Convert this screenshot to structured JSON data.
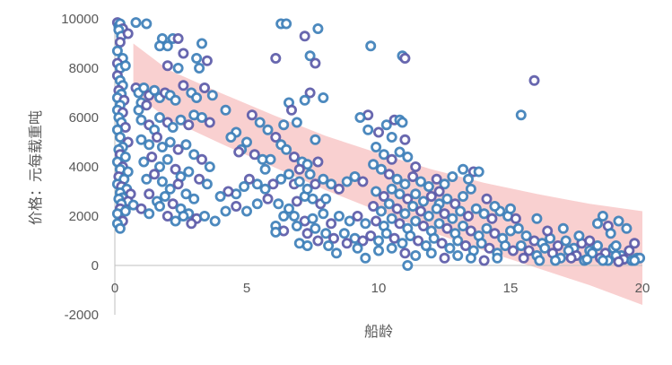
{
  "chart_data": {
    "type": "scatter",
    "xlabel": "船龄",
    "ylabel": "价格：元每载重吨",
    "xlim": [
      0,
      20
    ],
    "ylim": [
      -2000,
      10000
    ],
    "x_ticks": [
      "0",
      "5",
      "10",
      "15",
      "20"
    ],
    "y_ticks": [
      "-2000",
      "0",
      "2000",
      "4000",
      "6000",
      "8000",
      "10000"
    ],
    "grid": false,
    "legend": "none",
    "marker_color": "#3d7fb8",
    "marker_color_dark": "#5b5aa8",
    "band_color": "#f8c8c8",
    "confidence_band": {
      "x": [
        0.7,
        2,
        4,
        6,
        8,
        10,
        12,
        14,
        16,
        18,
        20
      ],
      "upper": [
        9000,
        7950,
        7000,
        6100,
        5250,
        4550,
        3900,
        3350,
        2900,
        2500,
        2200
      ],
      "lower": [
        7000,
        5950,
        4950,
        4000,
        3050,
        2200,
        1350,
        600,
        -100,
        -800,
        -1600
      ]
    },
    "points": [
      [
        0.1,
        9850
      ],
      [
        0.15,
        9700
      ],
      [
        0.2,
        9800
      ],
      [
        0.3,
        9600
      ],
      [
        0.15,
        9550
      ],
      [
        0.25,
        9300
      ],
      [
        0.5,
        9400
      ],
      [
        0.8,
        9850
      ],
      [
        1.2,
        9800
      ],
      [
        0.2,
        9050
      ],
      [
        0.1,
        8700
      ],
      [
        0.3,
        8400
      ],
      [
        0.1,
        8200
      ],
      [
        0.2,
        8000
      ],
      [
        0.4,
        8100
      ],
      [
        0.1,
        7700
      ],
      [
        0.2,
        7500
      ],
      [
        0.3,
        7300
      ],
      [
        0.15,
        7100
      ],
      [
        0.25,
        6950
      ],
      [
        0.1,
        6800
      ],
      [
        0.35,
        6700
      ],
      [
        0.2,
        6500
      ],
      [
        0.1,
        6300
      ],
      [
        0.3,
        6200
      ],
      [
        0.15,
        6000
      ],
      [
        0.25,
        5800
      ],
      [
        0.4,
        5600
      ],
      [
        0.1,
        5500
      ],
      [
        0.2,
        5200
      ],
      [
        0.5,
        5000
      ],
      [
        0.3,
        4800
      ],
      [
        0.15,
        4700
      ],
      [
        0.2,
        4500
      ],
      [
        0.4,
        4400
      ],
      [
        0.1,
        4200
      ],
      [
        0.3,
        4000
      ],
      [
        0.2,
        3900
      ],
      [
        0.5,
        3800
      ],
      [
        0.15,
        3600
      ],
      [
        0.35,
        3500
      ],
      [
        0.1,
        3300
      ],
      [
        0.25,
        3200
      ],
      [
        0.45,
        3100
      ],
      [
        0.2,
        2950
      ],
      [
        0.6,
        2900
      ],
      [
        0.3,
        2750
      ],
      [
        0.15,
        2700
      ],
      [
        0.5,
        2600
      ],
      [
        0.25,
        2500
      ],
      [
        0.7,
        2450
      ],
      [
        0.2,
        2300
      ],
      [
        0.4,
        2200
      ],
      [
        0.1,
        2100
      ],
      [
        0.3,
        1800
      ],
      [
        0.1,
        1700
      ],
      [
        0.2,
        1500
      ],
      [
        0.8,
        7200
      ],
      [
        0.9,
        7000
      ],
      [
        1.1,
        7200
      ],
      [
        1.3,
        6900
      ],
      [
        1.0,
        6600
      ],
      [
        0.9,
        6300
      ],
      [
        1.2,
        6500
      ],
      [
        1.5,
        7100
      ],
      [
        1.7,
        6800
      ],
      [
        1.9,
        7000
      ],
      [
        2.1,
        6900
      ],
      [
        2.3,
        6700
      ],
      [
        2.6,
        7300
      ],
      [
        2.9,
        7000
      ],
      [
        3.1,
        6800
      ],
      [
        3.4,
        7200
      ],
      [
        3.7,
        6900
      ],
      [
        1.0,
        5900
      ],
      [
        1.3,
        5700
      ],
      [
        1.5,
        5500
      ],
      [
        1.7,
        6000
      ],
      [
        2.0,
        5800
      ],
      [
        2.2,
        5600
      ],
      [
        2.5,
        5900
      ],
      [
        2.8,
        5700
      ],
      [
        3.0,
        6100
      ],
      [
        3.3,
        6000
      ],
      [
        3.6,
        5800
      ],
      [
        1.0,
        5100
      ],
      [
        1.3,
        4900
      ],
      [
        1.6,
        5200
      ],
      [
        1.8,
        4800
      ],
      [
        2.1,
        5000
      ],
      [
        2.4,
        4700
      ],
      [
        2.7,
        4900
      ],
      [
        3.0,
        4500
      ],
      [
        3.3,
        4300
      ],
      [
        3.6,
        4000
      ],
      [
        1.1,
        4200
      ],
      [
        1.4,
        4400
      ],
      [
        1.7,
        4000
      ],
      [
        2.0,
        4300
      ],
      [
        2.3,
        3900
      ],
      [
        2.5,
        3600
      ],
      [
        2.8,
        3800
      ],
      [
        3.2,
        3500
      ],
      [
        3.5,
        3300
      ],
      [
        1.2,
        3500
      ],
      [
        1.5,
        3700
      ],
      [
        1.8,
        3400
      ],
      [
        2.1,
        3100
      ],
      [
        2.4,
        3300
      ],
      [
        2.7,
        2900
      ],
      [
        3.0,
        2700
      ],
      [
        1.3,
        2900
      ],
      [
        1.6,
        2600
      ],
      [
        1.9,
        2800
      ],
      [
        2.2,
        2500
      ],
      [
        2.5,
        2300
      ],
      [
        2.8,
        2100
      ],
      [
        3.1,
        1900
      ],
      [
        3.4,
        2000
      ],
      [
        3.8,
        1800
      ],
      [
        1.0,
        2300
      ],
      [
        1.3,
        2100
      ],
      [
        1.7,
        2400
      ],
      [
        2.0,
        2000
      ],
      [
        2.3,
        1800
      ],
      [
        2.6,
        2000
      ],
      [
        2.9,
        1700
      ],
      [
        1.8,
        9200
      ],
      [
        2.2,
        9200
      ],
      [
        2.4,
        9200
      ],
      [
        1.7,
        8900
      ],
      [
        2.0,
        8900
      ],
      [
        2.6,
        8600
      ],
      [
        3.3,
        9000
      ],
      [
        3.1,
        8400
      ],
      [
        3.5,
        8300
      ],
      [
        3.2,
        8000
      ],
      [
        2.4,
        8000
      ],
      [
        2.0,
        8100
      ],
      [
        4.2,
        6300
      ],
      [
        4.6,
        5400
      ],
      [
        5.2,
        6100
      ],
      [
        5.5,
        5800
      ],
      [
        5.8,
        5500
      ],
      [
        6.1,
        5200
      ],
      [
        5.0,
        5000
      ],
      [
        4.8,
        4700
      ],
      [
        5.3,
        4500
      ],
      [
        5.6,
        4300
      ],
      [
        4.4,
        5200
      ],
      [
        4.7,
        4600
      ],
      [
        6.3,
        4900
      ],
      [
        6.5,
        4700
      ],
      [
        6.8,
        4400
      ],
      [
        7.1,
        4200
      ],
      [
        7.3,
        4100
      ],
      [
        7.0,
        3900
      ],
      [
        6.6,
        3700
      ],
      [
        6.3,
        3500
      ],
      [
        6.0,
        3300
      ],
      [
        5.7,
        3100
      ],
      [
        5.4,
        3300
      ],
      [
        5.1,
        3500
      ],
      [
        4.9,
        3200
      ],
      [
        4.6,
        2900
      ],
      [
        4.3,
        3000
      ],
      [
        4.0,
        2800
      ],
      [
        4.2,
        2200
      ],
      [
        4.6,
        2400
      ],
      [
        5.0,
        2200
      ],
      [
        5.4,
        2500
      ],
      [
        5.8,
        2700
      ],
      [
        6.2,
        2500
      ],
      [
        6.6,
        2300
      ],
      [
        6.9,
        2600
      ],
      [
        7.2,
        2800
      ],
      [
        7.5,
        2700
      ],
      [
        7.8,
        2500
      ],
      [
        8.0,
        2700
      ],
      [
        7.3,
        3100
      ],
      [
        7.6,
        3300
      ],
      [
        7.9,
        3500
      ],
      [
        8.2,
        3300
      ],
      [
        8.5,
        3100
      ],
      [
        8.8,
        3400
      ],
      [
        9.1,
        3600
      ],
      [
        9.4,
        3400
      ],
      [
        6.4,
        2000
      ],
      [
        6.8,
        2000
      ],
      [
        7.2,
        1800
      ],
      [
        7.5,
        1900
      ],
      [
        7.9,
        2100
      ],
      [
        8.2,
        1700
      ],
      [
        8.5,
        2000
      ],
      [
        8.9,
        1800
      ],
      [
        9.2,
        2000
      ],
      [
        9.5,
        1700
      ],
      [
        6.1,
        1600
      ],
      [
        6.4,
        1400
      ],
      [
        6.1,
        1350
      ],
      [
        6.9,
        1600
      ],
      [
        7.3,
        1300
      ],
      [
        7.6,
        1500
      ],
      [
        8.0,
        1300
      ],
      [
        8.3,
        1100
      ],
      [
        8.7,
        1300
      ],
      [
        9.1,
        1100
      ],
      [
        9.4,
        1000
      ],
      [
        7.0,
        900
      ],
      [
        7.3,
        800
      ],
      [
        7.7,
        1000
      ],
      [
        8.1,
        800
      ],
      [
        8.4,
        500
      ],
      [
        8.8,
        900
      ],
      [
        9.2,
        700
      ],
      [
        9.5,
        300
      ],
      [
        6.8,
        3300
      ],
      [
        7.0,
        3400
      ],
      [
        7.4,
        3700
      ],
      [
        7.7,
        4200
      ],
      [
        7.6,
        5100
      ],
      [
        7.9,
        6800
      ],
      [
        7.4,
        7000
      ],
      [
        7.2,
        6700
      ],
      [
        6.6,
        6600
      ],
      [
        6.7,
        6300
      ],
      [
        6.4,
        5700
      ],
      [
        6.9,
        5800
      ],
      [
        6.1,
        8400
      ],
      [
        6.3,
        9800
      ],
      [
        6.5,
        9800
      ],
      [
        7.2,
        9300
      ],
      [
        7.7,
        9600
      ],
      [
        7.4,
        8500
      ],
      [
        7.6,
        8200
      ],
      [
        5.7,
        3900
      ],
      [
        5.9,
        4300
      ],
      [
        9.6,
        6100
      ],
      [
        9.3,
        6000
      ],
      [
        9.6,
        5500
      ],
      [
        10.0,
        5400
      ],
      [
        10.3,
        5700
      ],
      [
        10.5,
        5200
      ],
      [
        10.6,
        5900
      ],
      [
        10.8,
        5900
      ],
      [
        10.9,
        5800
      ],
      [
        11.0,
        5100
      ],
      [
        9.7,
        8900
      ],
      [
        10.9,
        8500
      ],
      [
        11.0,
        8400
      ],
      [
        9.9,
        4800
      ],
      [
        10.2,
        4500
      ],
      [
        10.5,
        4300
      ],
      [
        10.8,
        4600
      ],
      [
        11.1,
        4400
      ],
      [
        11.4,
        4000
      ],
      [
        9.8,
        4100
      ],
      [
        10.1,
        3900
      ],
      [
        10.4,
        3700
      ],
      [
        10.7,
        3500
      ],
      [
        11.0,
        3300
      ],
      [
        11.3,
        3600
      ],
      [
        11.6,
        3400
      ],
      [
        11.9,
        3200
      ],
      [
        12.2,
        3500
      ],
      [
        12.5,
        3300
      ],
      [
        9.9,
        3000
      ],
      [
        10.2,
        2800
      ],
      [
        10.5,
        3100
      ],
      [
        10.8,
        2900
      ],
      [
        11.1,
        2700
      ],
      [
        11.4,
        2900
      ],
      [
        11.7,
        2600
      ],
      [
        12.0,
        2800
      ],
      [
        12.3,
        2500
      ],
      [
        12.6,
        2700
      ],
      [
        12.9,
        2500
      ],
      [
        13.2,
        2800
      ],
      [
        13.5,
        3100
      ],
      [
        9.8,
        2400
      ],
      [
        10.1,
        2200
      ],
      [
        10.4,
        2500
      ],
      [
        10.7,
        2300
      ],
      [
        11.0,
        2100
      ],
      [
        11.3,
        2400
      ],
      [
        11.6,
        2200
      ],
      [
        11.9,
        2000
      ],
      [
        12.2,
        2300
      ],
      [
        12.5,
        2100
      ],
      [
        12.8,
        1900
      ],
      [
        13.1,
        2200
      ],
      [
        13.4,
        2000
      ],
      [
        13.7,
        2300
      ],
      [
        14.0,
        2100
      ],
      [
        14.3,
        1900
      ],
      [
        14.6,
        2200
      ],
      [
        14.9,
        2000
      ],
      [
        9.9,
        1800
      ],
      [
        10.2,
        1600
      ],
      [
        10.5,
        1900
      ],
      [
        10.8,
        1700
      ],
      [
        11.1,
        1500
      ],
      [
        11.4,
        1800
      ],
      [
        11.7,
        1600
      ],
      [
        12.0,
        1400
      ],
      [
        12.3,
        1700
      ],
      [
        12.6,
        1500
      ],
      [
        12.9,
        1300
      ],
      [
        13.2,
        1600
      ],
      [
        13.5,
        1400
      ],
      [
        13.8,
        1200
      ],
      [
        14.1,
        1500
      ],
      [
        14.4,
        1300
      ],
      [
        14.7,
        1100
      ],
      [
        15.0,
        1400
      ],
      [
        9.7,
        1200
      ],
      [
        10.0,
        1000
      ],
      [
        10.3,
        1300
      ],
      [
        10.6,
        1100
      ],
      [
        10.9,
        900
      ],
      [
        11.2,
        1200
      ],
      [
        11.5,
        1000
      ],
      [
        11.8,
        800
      ],
      [
        12.1,
        1100
      ],
      [
        12.4,
        900
      ],
      [
        12.7,
        700
      ],
      [
        13.0,
        1000
      ],
      [
        13.3,
        800
      ],
      [
        13.6,
        600
      ],
      [
        13.9,
        900
      ],
      [
        14.2,
        700
      ],
      [
        14.5,
        500
      ],
      [
        14.8,
        800
      ],
      [
        15.1,
        600
      ],
      [
        10.0,
        600
      ],
      [
        10.5,
        700
      ],
      [
        11.0,
        500
      ],
      [
        11.4,
        400
      ],
      [
        12.0,
        500
      ],
      [
        12.5,
        300
      ],
      [
        13.0,
        400
      ],
      [
        13.5,
        300
      ],
      [
        14.0,
        200
      ],
      [
        14.5,
        300
      ],
      [
        11.1,
        0
      ],
      [
        12.3,
        3000
      ],
      [
        12.8,
        3600
      ],
      [
        13.2,
        3900
      ],
      [
        13.6,
        3800
      ],
      [
        13.8,
        3800
      ],
      [
        13.4,
        3500
      ],
      [
        14.1,
        2700
      ],
      [
        14.4,
        2400
      ],
      [
        15.0,
        2300
      ],
      [
        15.2,
        1900
      ],
      [
        15.3,
        1500
      ],
      [
        15.6,
        1200
      ],
      [
        15.9,
        1000
      ],
      [
        16.2,
        900
      ],
      [
        16.5,
        1100
      ],
      [
        16.8,
        800
      ],
      [
        17.1,
        1000
      ],
      [
        17.4,
        700
      ],
      [
        17.7,
        900
      ],
      [
        18.0,
        600
      ],
      [
        18.3,
        800
      ],
      [
        18.6,
        500
      ],
      [
        18.9,
        700
      ],
      [
        19.2,
        400
      ],
      [
        19.5,
        600
      ],
      [
        19.8,
        300
      ],
      [
        15.4,
        800
      ],
      [
        15.7,
        600
      ],
      [
        16.0,
        400
      ],
      [
        16.3,
        700
      ],
      [
        16.6,
        500
      ],
      [
        16.9,
        300
      ],
      [
        17.2,
        600
      ],
      [
        17.5,
        400
      ],
      [
        17.8,
        200
      ],
      [
        18.1,
        500
      ],
      [
        18.4,
        300
      ],
      [
        18.7,
        200
      ],
      [
        19.0,
        400
      ],
      [
        19.3,
        250
      ],
      [
        19.6,
        200
      ],
      [
        19.9,
        300
      ],
      [
        15.5,
        300
      ],
      [
        16.1,
        200
      ],
      [
        16.7,
        200
      ],
      [
        17.3,
        300
      ],
      [
        17.9,
        250
      ],
      [
        18.5,
        200
      ],
      [
        19.1,
        150
      ],
      [
        19.7,
        200
      ],
      [
        16.0,
        1900
      ],
      [
        16.4,
        1400
      ],
      [
        17.0,
        1500
      ],
      [
        17.6,
        1200
      ],
      [
        18.0,
        1000
      ],
      [
        18.3,
        1700
      ],
      [
        18.5,
        2000
      ],
      [
        18.7,
        1600
      ],
      [
        19.1,
        1800
      ],
      [
        19.4,
        1500
      ],
      [
        19.7,
        900
      ],
      [
        19.0,
        800
      ],
      [
        18.8,
        1300
      ],
      [
        15.9,
        7500
      ],
      [
        15.4,
        6100
      ]
    ]
  }
}
